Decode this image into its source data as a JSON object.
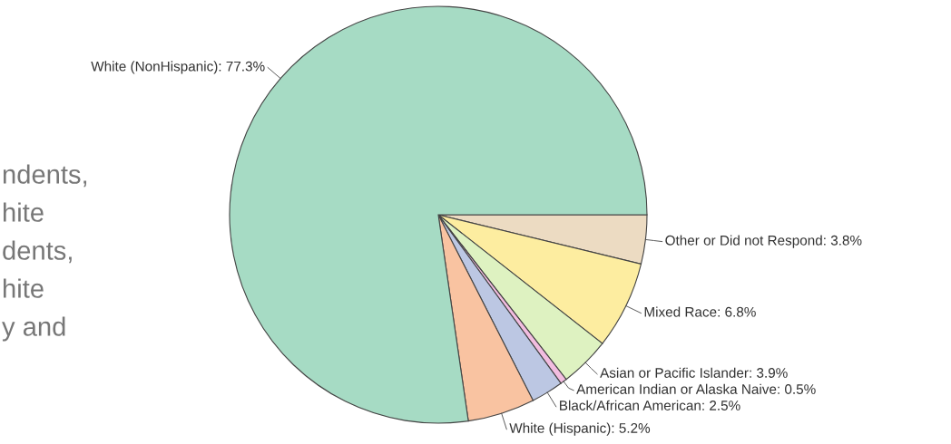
{
  "chart_data": {
    "type": "pie",
    "categories": [
      "Other or Did not Respond",
      "Mixed Race",
      "Asian or Pacific Islander",
      "American Indian or Alaska Naive",
      "Black/African American",
      "White (Hispanic)",
      "White (NonHispanic)"
    ],
    "values": [
      3.8,
      6.8,
      3.9,
      0.5,
      2.5,
      5.2,
      77.3
    ],
    "value_labels": [
      "3.8%",
      "6.8%",
      "3.9%",
      "0.5%",
      "2.5%",
      "5.2%",
      "77.3%"
    ],
    "colors": [
      "#ecdbc2",
      "#fdeda0",
      "#def2c1",
      "#f2bde0",
      "#bcc7e3",
      "#f9c3a1",
      "#a6dbc4"
    ],
    "annotations": [
      "ndents,",
      "hite",
      "dents,",
      "hite",
      "y and"
    ]
  }
}
